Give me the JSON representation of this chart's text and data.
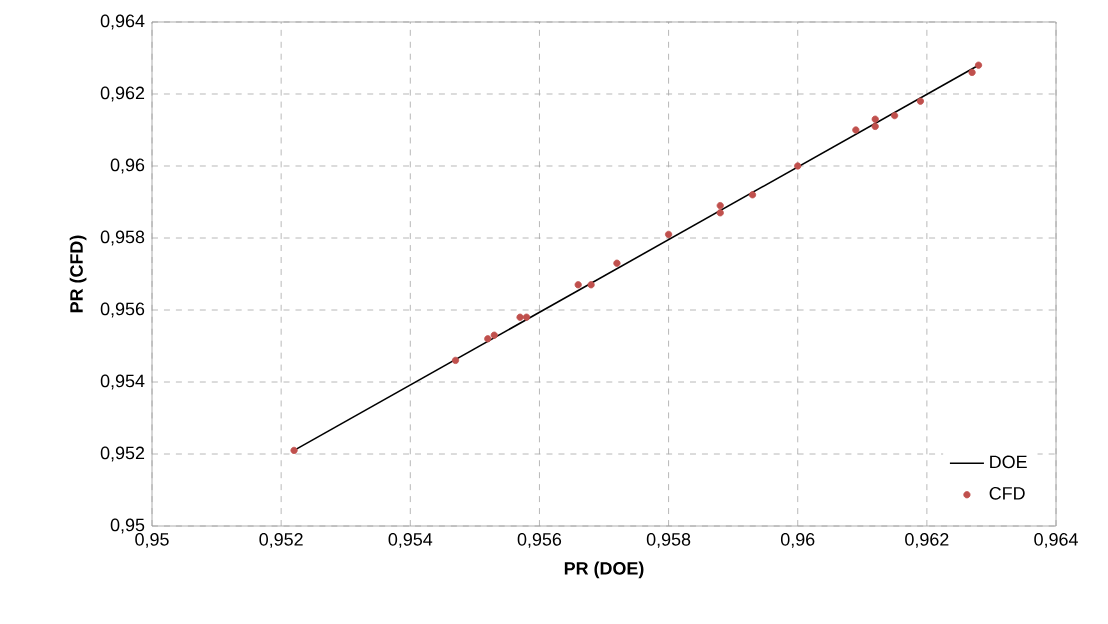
{
  "chart_data": {
    "type": "scatter",
    "xlabel": "PR (DOE)",
    "ylabel": "PR (CFD)",
    "xlim": [
      0.95,
      0.964
    ],
    "ylim": [
      0.95,
      0.964
    ],
    "xticks": [
      {
        "value": 0.95,
        "label": "0,95"
      },
      {
        "value": 0.952,
        "label": "0,952"
      },
      {
        "value": 0.954,
        "label": "0,954"
      },
      {
        "value": 0.956,
        "label": "0,956"
      },
      {
        "value": 0.958,
        "label": "0,958"
      },
      {
        "value": 0.96,
        "label": "0,96"
      },
      {
        "value": 0.962,
        "label": "0,962"
      },
      {
        "value": 0.964,
        "label": "0,964"
      }
    ],
    "yticks": [
      {
        "value": 0.95,
        "label": "0,95"
      },
      {
        "value": 0.952,
        "label": "0,952"
      },
      {
        "value": 0.954,
        "label": "0,954"
      },
      {
        "value": 0.956,
        "label": "0,956"
      },
      {
        "value": 0.958,
        "label": "0,958"
      },
      {
        "value": 0.96,
        "label": "0,96"
      },
      {
        "value": 0.962,
        "label": "0,962"
      },
      {
        "value": 0.964,
        "label": "0,964"
      }
    ],
    "grid": true,
    "legend": "bottom right",
    "series": [
      {
        "name": "DOE",
        "type": "line",
        "color": "#000000",
        "marker": "none",
        "line_style": "solid",
        "x": [
          0.9522,
          0.9628
        ],
        "values": [
          0.9521,
          0.9628
        ]
      },
      {
        "name": "CFD",
        "color": "#c0504d",
        "marker": "circle",
        "x": [
          0.9522,
          0.9547,
          0.9552,
          0.9553,
          0.9557,
          0.9558,
          0.9566,
          0.9568,
          0.9572,
          0.958,
          0.9588,
          0.9588,
          0.9593,
          0.96,
          0.9609,
          0.9612,
          0.9612,
          0.9615,
          0.9619,
          0.9627,
          0.9628
        ],
        "values": [
          0.9521,
          0.9546,
          0.9552,
          0.9553,
          0.9558,
          0.9558,
          0.9567,
          0.9567,
          0.9573,
          0.9581,
          0.9587,
          0.9589,
          0.9592,
          0.96,
          0.961,
          0.9611,
          0.9613,
          0.9614,
          0.9618,
          0.9626,
          0.9628
        ]
      }
    ]
  }
}
